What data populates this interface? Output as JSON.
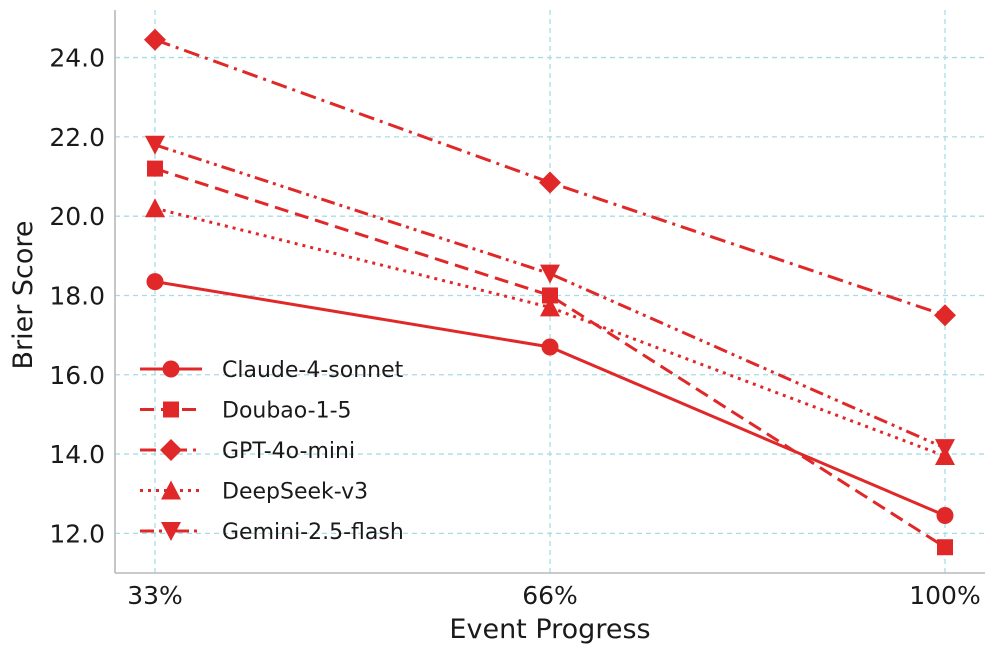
{
  "chart_data": {
    "type": "line",
    "xlabel": "Event Progress",
    "ylabel": "Brier Score",
    "categories": [
      "33%",
      "66%",
      "100%"
    ],
    "ylim": [
      11.0,
      25.2
    ],
    "yticks": [
      12.0,
      14.0,
      16.0,
      18.0,
      20.0,
      22.0,
      24.0
    ],
    "ytick_labels": [
      "12.0",
      "14.0",
      "16.0",
      "18.0",
      "20.0",
      "22.0",
      "24.0"
    ],
    "grid": true,
    "legend_position": "lower-left",
    "series": [
      {
        "name": "Claude-4-sonnet",
        "values": [
          18.35,
          16.7,
          12.45
        ],
        "marker": "circle",
        "dash": "solid"
      },
      {
        "name": "Doubao-1-5",
        "values": [
          21.2,
          18.0,
          11.65
        ],
        "marker": "square",
        "dash": "dashed"
      },
      {
        "name": "GPT-4o-mini",
        "values": [
          24.45,
          20.85,
          17.5
        ],
        "marker": "diamond",
        "dash": "dashdot"
      },
      {
        "name": "DeepSeek-v3",
        "values": [
          20.2,
          17.7,
          13.95
        ],
        "marker": "triangle-up",
        "dash": "dotted"
      },
      {
        "name": "Gemini-2.5-flash",
        "values": [
          21.8,
          18.55,
          14.15
        ],
        "marker": "triangle-down",
        "dash": "dashdotdot"
      }
    ],
    "colors": {
      "line": "#e02828",
      "grid": "#a8dce6",
      "axis": "#b8b8b8"
    }
  }
}
